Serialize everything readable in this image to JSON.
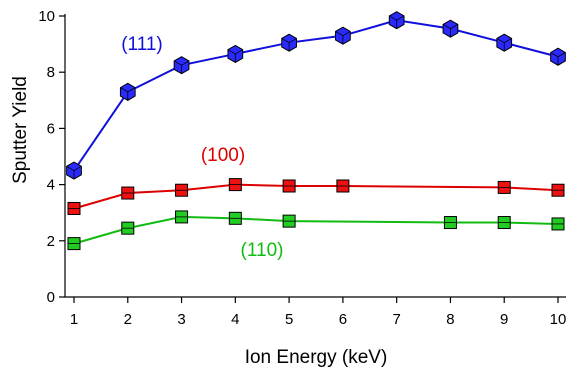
{
  "chart_data": {
    "type": "line",
    "xlabel": "Ion Energy (keV)",
    "ylabel": "Sputter Yield",
    "xlim": [
      1,
      10
    ],
    "ylim": [
      0,
      10
    ],
    "x_ticks": [
      1,
      2,
      3,
      4,
      5,
      6,
      7,
      8,
      9,
      10
    ],
    "y_ticks": [
      0,
      2,
      4,
      6,
      8,
      10
    ],
    "grid": false,
    "legend": "none (inline series labels)",
    "series": [
      {
        "name": "(111)",
        "color": "#1010dd",
        "marker": "hexagon",
        "marker_color": "#2a2aff",
        "x": [
          1,
          2,
          3,
          4,
          5,
          6,
          7,
          8,
          9,
          10
        ],
        "y": [
          4.5,
          7.3,
          8.25,
          8.65,
          9.05,
          9.3,
          9.85,
          9.55,
          9.05,
          8.55
        ]
      },
      {
        "name": "(100)",
        "color": "#dd0000",
        "marker": "square",
        "marker_color": "#ee1111",
        "x": [
          1,
          2,
          3,
          4,
          5,
          6,
          9,
          10
        ],
        "y": [
          3.15,
          3.7,
          3.8,
          4.0,
          3.95,
          3.95,
          3.9,
          3.8
        ]
      },
      {
        "name": "(110)",
        "color": "#11bb11",
        "marker": "square",
        "marker_color": "#22cc22",
        "x": [
          1,
          2,
          3,
          4,
          5,
          8,
          9,
          10
        ],
        "y": [
          1.9,
          2.45,
          2.85,
          2.8,
          2.7,
          2.65,
          2.65,
          2.6
        ]
      }
    ]
  }
}
